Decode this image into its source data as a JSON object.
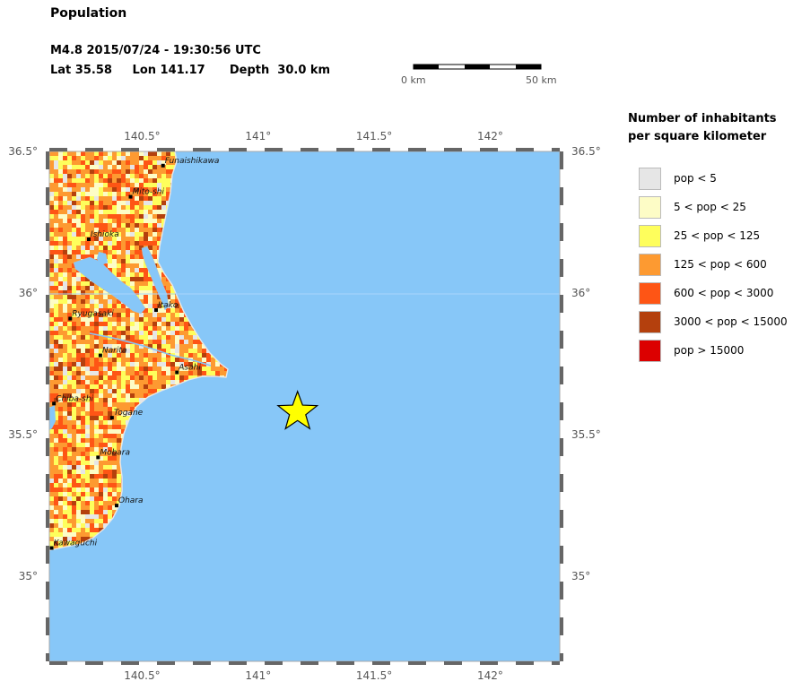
{
  "header": {
    "title": "Population",
    "event": "M4.8  2015/07/24 - 19:30:56 UTC",
    "location": "Lat 35.58     Lon 141.17      Depth  30.0 km"
  },
  "scale_bar": {
    "left_label": "0 km",
    "right_label": "50 km"
  },
  "legend": {
    "title_line1": "Number of inhabitants",
    "title_line2": "per square kilometer",
    "items": [
      {
        "label": "pop < 5",
        "color": "#e6e6e6"
      },
      {
        "label": "5 < pop < 25",
        "color": "#fdfcc6"
      },
      {
        "label": "25 < pop < 125",
        "color": "#fefe5c"
      },
      {
        "label": "125 < pop < 600",
        "color": "#fd9a31"
      },
      {
        "label": "600 < pop < 3000",
        "color": "#fe5515"
      },
      {
        "label": "3000 < pop < 15000",
        "color": "#b4400d"
      },
      {
        "label": "pop > 15000",
        "color": "#dc0000"
      }
    ]
  },
  "map": {
    "lon_range": [
      140.1,
      142.3
    ],
    "lat_range": [
      34.7,
      36.5
    ],
    "lon_ticks": [
      {
        "value": 140.5,
        "label": "140.5°"
      },
      {
        "value": 141.0,
        "label": "141°"
      },
      {
        "value": 141.5,
        "label": "141.5°"
      },
      {
        "value": 142.0,
        "label": "142°"
      }
    ],
    "lat_ticks": [
      {
        "value": 36.5,
        "label": "36.5°"
      },
      {
        "value": 36.0,
        "label": "36°"
      },
      {
        "value": 35.5,
        "label": "35.5°"
      },
      {
        "value": 35.0,
        "label": "35°"
      }
    ],
    "ocean_color": "#87c7f8",
    "epicenter": {
      "lon": 141.17,
      "lat": 35.58,
      "color": "#ffff00"
    },
    "cities": [
      {
        "name": "Funaishikawa",
        "lon": 140.59,
        "lat": 36.45
      },
      {
        "name": "Mito-shi",
        "lon": 140.45,
        "lat": 36.34
      },
      {
        "name": "Ishioka",
        "lon": 140.27,
        "lat": 36.19
      },
      {
        "name": "Itako",
        "lon": 140.56,
        "lat": 35.94
      },
      {
        "name": "Ryugasaki",
        "lon": 140.19,
        "lat": 35.91
      },
      {
        "name": "Narita",
        "lon": 140.32,
        "lat": 35.78
      },
      {
        "name": "Asahi",
        "lon": 140.65,
        "lat": 35.72
      },
      {
        "name": "Chiba-shi",
        "lon": 140.12,
        "lat": 35.61
      },
      {
        "name": "Togane",
        "lon": 140.37,
        "lat": 35.56
      },
      {
        "name": "Mobara",
        "lon": 140.31,
        "lat": 35.42
      },
      {
        "name": "Ohara",
        "lon": 140.39,
        "lat": 35.25
      },
      {
        "name": "Kawaguchi",
        "lon": 140.11,
        "lat": 35.1
      }
    ]
  }
}
